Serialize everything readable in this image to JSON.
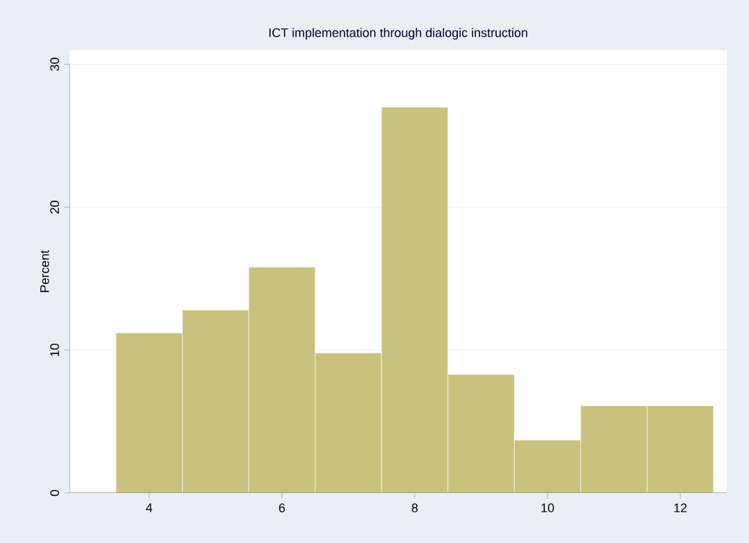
{
  "chart_data": {
    "type": "histogram",
    "title": "ICT implementation through dialogic instruction",
    "ylabel": "Percent",
    "bins": [
      3.5,
      4.5,
      5.5,
      6.5,
      7.5,
      8.5,
      9.5,
      10.5,
      11.5,
      12.5
    ],
    "values": [
      11.2,
      12.8,
      15.8,
      9.8,
      27.0,
      8.3,
      3.7,
      6.1,
      6.1
    ],
    "color": "#c8c27e",
    "xlim": [
      2.8,
      12.7
    ],
    "xticks": [
      4,
      6,
      8,
      10,
      12
    ],
    "ylim": [
      0,
      31
    ],
    "yticks": [
      0,
      10,
      20,
      30
    ],
    "grid": "y"
  }
}
